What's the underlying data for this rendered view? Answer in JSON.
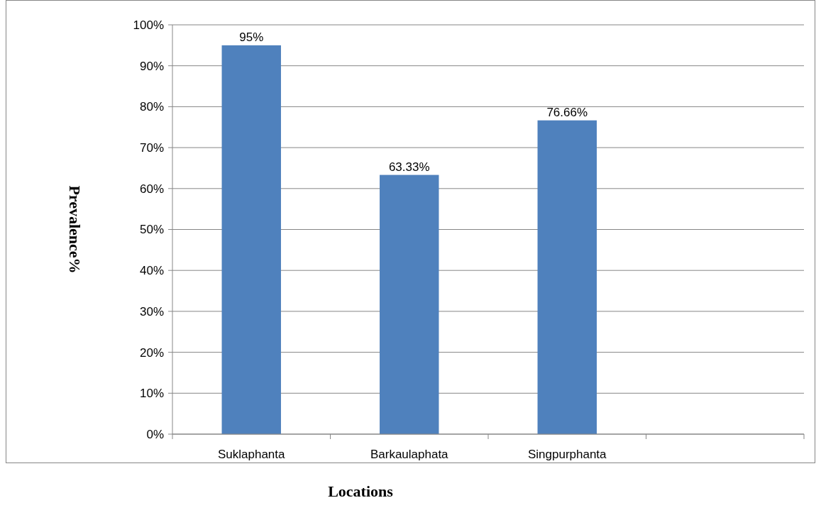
{
  "chart_data": {
    "type": "bar",
    "xlabel": "Locations",
    "ylabel": "Prevalence%",
    "categories": [
      "Suklaphanta",
      "Barkaulaphata",
      "Singpurphanta",
      null
    ],
    "values": [
      95,
      63.33,
      76.66,
      null
    ],
    "value_labels": [
      "95%",
      "63.33%",
      "76.66%",
      null
    ],
    "color": "#4f81bd",
    "ylim": [
      0,
      100
    ],
    "yticks": [
      {
        "value": 0,
        "label": "0%"
      },
      {
        "value": 10,
        "label": "10%"
      },
      {
        "value": 20,
        "label": "20%"
      },
      {
        "value": 30,
        "label": "30%"
      },
      {
        "value": 40,
        "label": "40%"
      },
      {
        "value": 50,
        "label": "50%"
      },
      {
        "value": 60,
        "label": "60%"
      },
      {
        "value": 70,
        "label": "70%"
      },
      {
        "value": 80,
        "label": "80%"
      },
      {
        "value": 90,
        "label": "90%"
      },
      {
        "value": 100,
        "label": "100%"
      }
    ],
    "grid": "y"
  }
}
